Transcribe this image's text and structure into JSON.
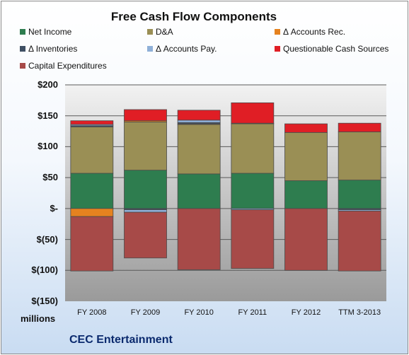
{
  "chart_data": {
    "type": "bar",
    "stacked": true,
    "title": "Free Cash Flow Components",
    "units_label": "millions",
    "company_label": "CEC Entertainment",
    "categories": [
      "FY 2008",
      "FY 2009",
      "FY 2010",
      "FY 2011",
      "FY 2012",
      "TTM 3-2013"
    ],
    "ylim": [
      -150,
      200
    ],
    "yticks": [
      -150,
      -100,
      -50,
      0,
      50,
      100,
      150,
      200
    ],
    "ytick_labels": [
      "$(150)",
      "$(100)",
      "$(50)",
      "$-",
      "$50",
      "$100",
      "$150",
      "$200"
    ],
    "grid": true,
    "legend_position": "top",
    "series": [
      {
        "name": "Net Income",
        "color": "#2e7d4f",
        "values": [
          57,
          62,
          56,
          57,
          45,
          46
        ]
      },
      {
        "name": "D&A",
        "color": "#9a8f55",
        "values": [
          75,
          78,
          80,
          80,
          78,
          78
        ]
      },
      {
        "name": "Δ Accounts Rec.",
        "color": "#e5821f",
        "values": [
          -13,
          2,
          1,
          1,
          0,
          0
        ]
      },
      {
        "name": "Δ Inventories",
        "color": "#3f4f63",
        "values": [
          2,
          -2,
          2,
          0,
          0,
          -2
        ]
      },
      {
        "name": "Δ Accounts Pay.",
        "color": "#8fb0d8",
        "values": [
          2,
          -4,
          4,
          -2,
          0,
          -2
        ]
      },
      {
        "name": "Questionable Cash Sources",
        "color": "#e01e25",
        "values": [
          6,
          18,
          16,
          33,
          14,
          14
        ]
      },
      {
        "name": "Capital Expenditures",
        "color": "#a74a48",
        "values": [
          -88,
          -74,
          -99,
          -95,
          -100,
          -97
        ]
      }
    ]
  }
}
